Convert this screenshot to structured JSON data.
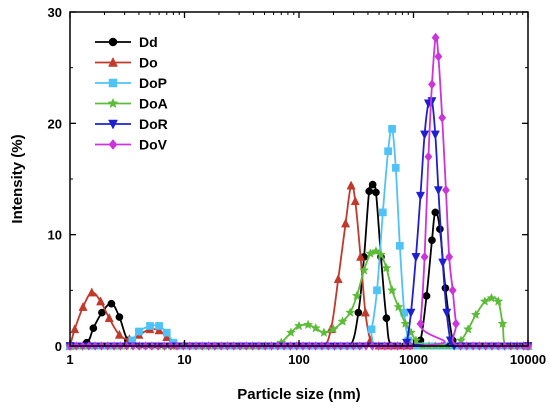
{
  "chart_data": {
    "type": "line",
    "xlabel": "Particle size (nm)",
    "ylabel": "Intensity (%)",
    "xscale": "log",
    "xlim": [
      1,
      10000
    ],
    "ylim": [
      0,
      30
    ],
    "xticks": [
      1,
      10,
      100,
      1000,
      10000
    ],
    "xtick_labels": [
      "1",
      "10",
      "100",
      "1000",
      "10000"
    ],
    "yticks": [
      0,
      10,
      20,
      30
    ],
    "ytick_labels": [
      "0",
      "10",
      "20",
      "30"
    ],
    "legend_position": "top-left",
    "series": [
      {
        "name": "Dd",
        "color": "#000000",
        "marker": "circle",
        "points": [
          [
            1.0,
            0
          ],
          [
            1.4,
            0.3
          ],
          [
            1.6,
            1.6
          ],
          [
            1.9,
            3.0
          ],
          [
            2.3,
            3.8
          ],
          [
            2.7,
            2.6
          ],
          [
            3.2,
            0.5
          ],
          [
            4.0,
            0
          ],
          [
            10,
            0
          ],
          [
            100,
            0
          ],
          [
            200,
            0
          ],
          [
            280,
            0
          ],
          [
            330,
            3.0
          ],
          [
            370,
            8.0
          ],
          [
            410,
            13.9
          ],
          [
            440,
            14.5
          ],
          [
            470,
            13.8
          ],
          [
            520,
            8.0
          ],
          [
            580,
            2.5
          ],
          [
            650,
            0
          ],
          [
            1000,
            0
          ],
          [
            1150,
            0.5
          ],
          [
            1300,
            4.5
          ],
          [
            1450,
            9.5
          ],
          [
            1550,
            12.0
          ],
          [
            1700,
            10.5
          ],
          [
            1900,
            5.2
          ],
          [
            2200,
            0.5
          ],
          [
            2500,
            0
          ],
          [
            10000,
            0
          ]
        ]
      },
      {
        "name": "Do",
        "color": "#c0392b",
        "marker": "triangle",
        "points": [
          [
            1.0,
            0
          ],
          [
            1.1,
            1.5
          ],
          [
            1.3,
            3.5
          ],
          [
            1.55,
            4.8
          ],
          [
            1.85,
            4.0
          ],
          [
            2.2,
            2.5
          ],
          [
            2.7,
            1.0
          ],
          [
            3.3,
            0.6
          ],
          [
            4.0,
            1.0
          ],
          [
            5.0,
            1.5
          ],
          [
            6.0,
            1.4
          ],
          [
            7.0,
            0.8
          ],
          [
            8.2,
            0
          ],
          [
            10,
            0
          ],
          [
            100,
            0
          ],
          [
            160,
            0
          ],
          [
            190,
            1.5
          ],
          [
            220,
            6.0
          ],
          [
            255,
            11.0
          ],
          [
            285,
            14.4
          ],
          [
            310,
            13.0
          ],
          [
            345,
            8.0
          ],
          [
            380,
            3.0
          ],
          [
            420,
            0.5
          ],
          [
            460,
            0
          ],
          [
            10000,
            0
          ]
        ]
      },
      {
        "name": "DoP",
        "color": "#4fc3f7",
        "marker": "square",
        "points": [
          [
            1.0,
            0
          ],
          [
            3.0,
            0
          ],
          [
            3.5,
            0.5
          ],
          [
            4.0,
            1.3
          ],
          [
            5.0,
            1.8
          ],
          [
            6.0,
            1.8
          ],
          [
            7.0,
            1.2
          ],
          [
            8.0,
            0.3
          ],
          [
            9.0,
            0
          ],
          [
            100,
            0
          ],
          [
            380,
            0
          ],
          [
            430,
            1.5
          ],
          [
            480,
            5.0
          ],
          [
            540,
            12.0
          ],
          [
            600,
            17.5
          ],
          [
            650,
            19.5
          ],
          [
            700,
            16.0
          ],
          [
            760,
            9.0
          ],
          [
            830,
            3.0
          ],
          [
            900,
            0.5
          ],
          [
            960,
            0
          ],
          [
            10000,
            0
          ]
        ]
      },
      {
        "name": "DoA",
        "color": "#5dbb3a",
        "marker": "star",
        "points": [
          [
            1.0,
            0
          ],
          [
            60,
            0
          ],
          [
            70,
            0.3
          ],
          [
            85,
            1.2
          ],
          [
            100,
            1.8
          ],
          [
            120,
            1.9
          ],
          [
            140,
            1.6
          ],
          [
            165,
            1.2
          ],
          [
            200,
            1.5
          ],
          [
            240,
            2.2
          ],
          [
            280,
            3.0
          ],
          [
            320,
            4.5
          ],
          [
            370,
            6.8
          ],
          [
            420,
            8.3
          ],
          [
            470,
            8.5
          ],
          [
            520,
            8.2
          ],
          [
            580,
            7.0
          ],
          [
            650,
            5.0
          ],
          [
            740,
            3.5
          ],
          [
            850,
            2.0
          ],
          [
            950,
            1.2
          ],
          [
            1050,
            0.5
          ],
          [
            1200,
            0
          ],
          [
            2200,
            0
          ],
          [
            2600,
            0.5
          ],
          [
            3000,
            1.5
          ],
          [
            3500,
            2.8
          ],
          [
            4200,
            4.0
          ],
          [
            4800,
            4.3
          ],
          [
            5500,
            4.0
          ],
          [
            6000,
            2.0
          ],
          [
            6500,
            0
          ],
          [
            10000,
            0
          ]
        ]
      },
      {
        "name": "DoR",
        "color": "#1f1fd1",
        "marker": "triangle-down",
        "points": [
          [
            1.0,
            0
          ],
          [
            800,
            0
          ],
          [
            870,
            0.3
          ],
          [
            950,
            3.0
          ],
          [
            1050,
            8.0
          ],
          [
            1150,
            13.5
          ],
          [
            1250,
            19.0
          ],
          [
            1350,
            21.8
          ],
          [
            1450,
            22.0
          ],
          [
            1550,
            19.0
          ],
          [
            1650,
            14.0
          ],
          [
            1800,
            7.5
          ],
          [
            1950,
            3.0
          ],
          [
            2100,
            0.5
          ],
          [
            2200,
            0
          ],
          [
            10000,
            0
          ]
        ]
      },
      {
        "name": "DoV",
        "color": "#cc33dd",
        "marker": "diamond",
        "points": [
          [
            1.0,
            0
          ],
          [
            1050,
            0
          ],
          [
            1150,
            2.0
          ],
          [
            1250,
            8.0
          ],
          [
            1350,
            17.0
          ],
          [
            1450,
            23.5
          ],
          [
            1560,
            27.7
          ],
          [
            1650,
            26.0
          ],
          [
            1780,
            20.5
          ],
          [
            1920,
            14.0
          ],
          [
            2050,
            8.0
          ],
          [
            2200,
            5.0
          ],
          [
            2350,
            2.0
          ],
          [
            2500,
            0
          ],
          [
            10000,
            0
          ]
        ]
      }
    ]
  }
}
